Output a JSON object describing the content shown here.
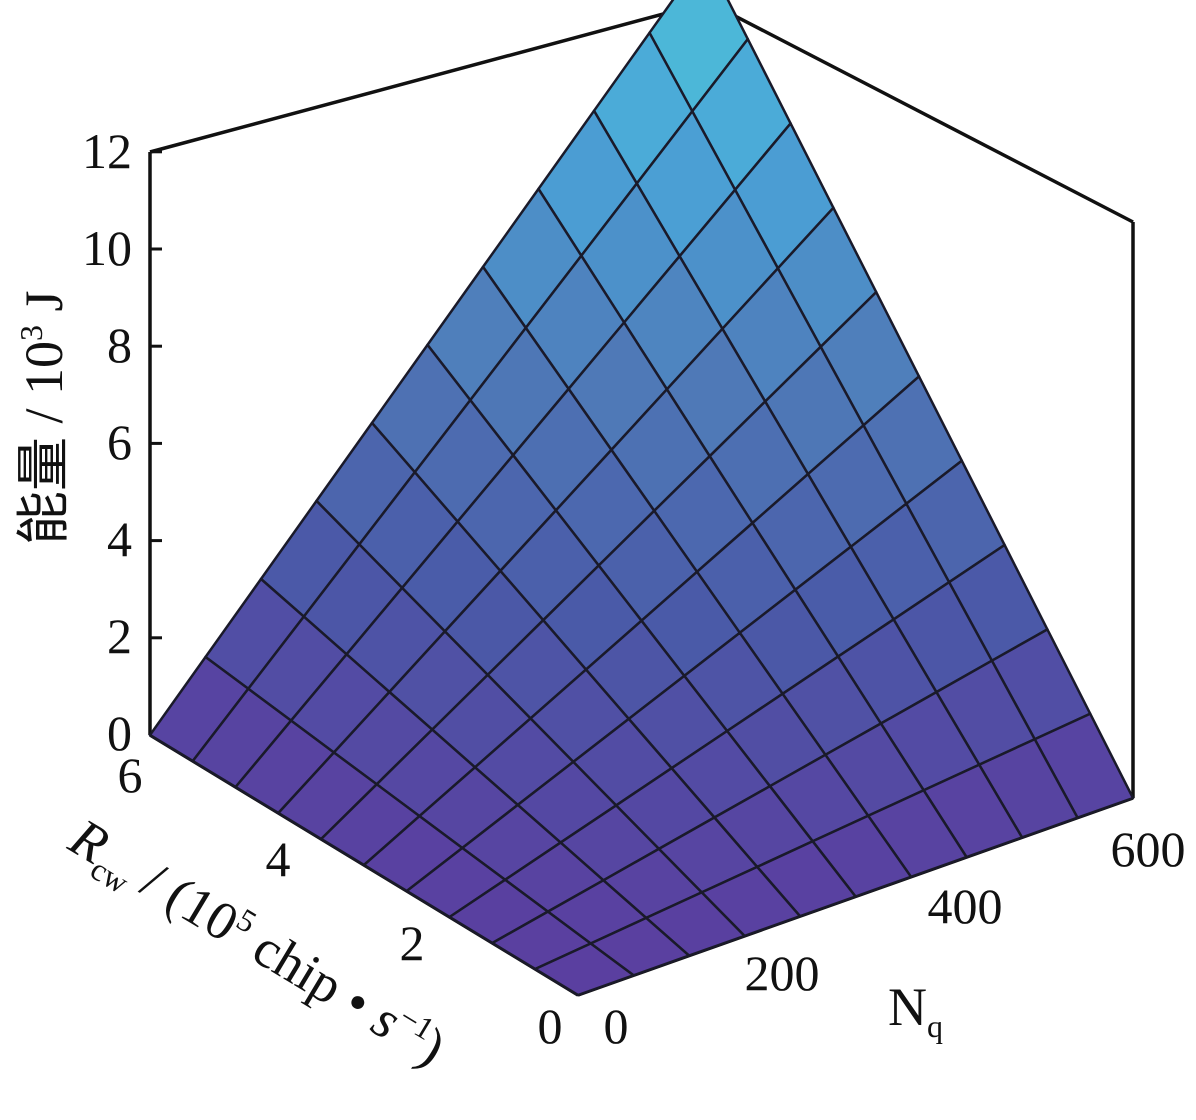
{
  "chart_data": {
    "type": "surface",
    "zlabel": "能量 / 10",
    "zlabel_sup": "3",
    "zlabel_unit": " J",
    "ylabel": {
      "var": "R",
      "var_sub": "cw",
      "prefix": " / (10",
      "prefix_sup": "5",
      "unit": " chip • ",
      "unit_var": "s",
      "unit_sup": "−1",
      "close": ")"
    },
    "xlabel": {
      "var": "N",
      "var_sub": "q"
    },
    "x_ticks": [
      "0",
      "200",
      "400",
      "600"
    ],
    "y_ticks": [
      "0",
      "2",
      "4",
      "6"
    ],
    "z_ticks": [
      "0",
      "2",
      "4",
      "6",
      "8",
      "10",
      "12"
    ],
    "xlim": [
      0,
      600
    ],
    "ylim": [
      0,
      6
    ],
    "zlim": [
      0,
      12
    ],
    "x_grid": [
      0,
      60,
      120,
      180,
      240,
      300,
      360,
      420,
      480,
      540,
      600
    ],
    "y_grid": [
      0,
      0.6,
      1.2,
      1.8,
      2.4,
      3.0,
      3.6,
      4.2,
      4.8,
      5.4,
      6.0
    ],
    "z_values": "E(N_q, R_cw) = 0.00333 · N_q · R_cw  (peak ≈ 12 at N_q = 600, R_cw = 6)",
    "colormap": [
      "#5a3fa0",
      "#4a5aa8",
      "#4f7bb8",
      "#4aa3d8",
      "#4ec4d8"
    ]
  }
}
